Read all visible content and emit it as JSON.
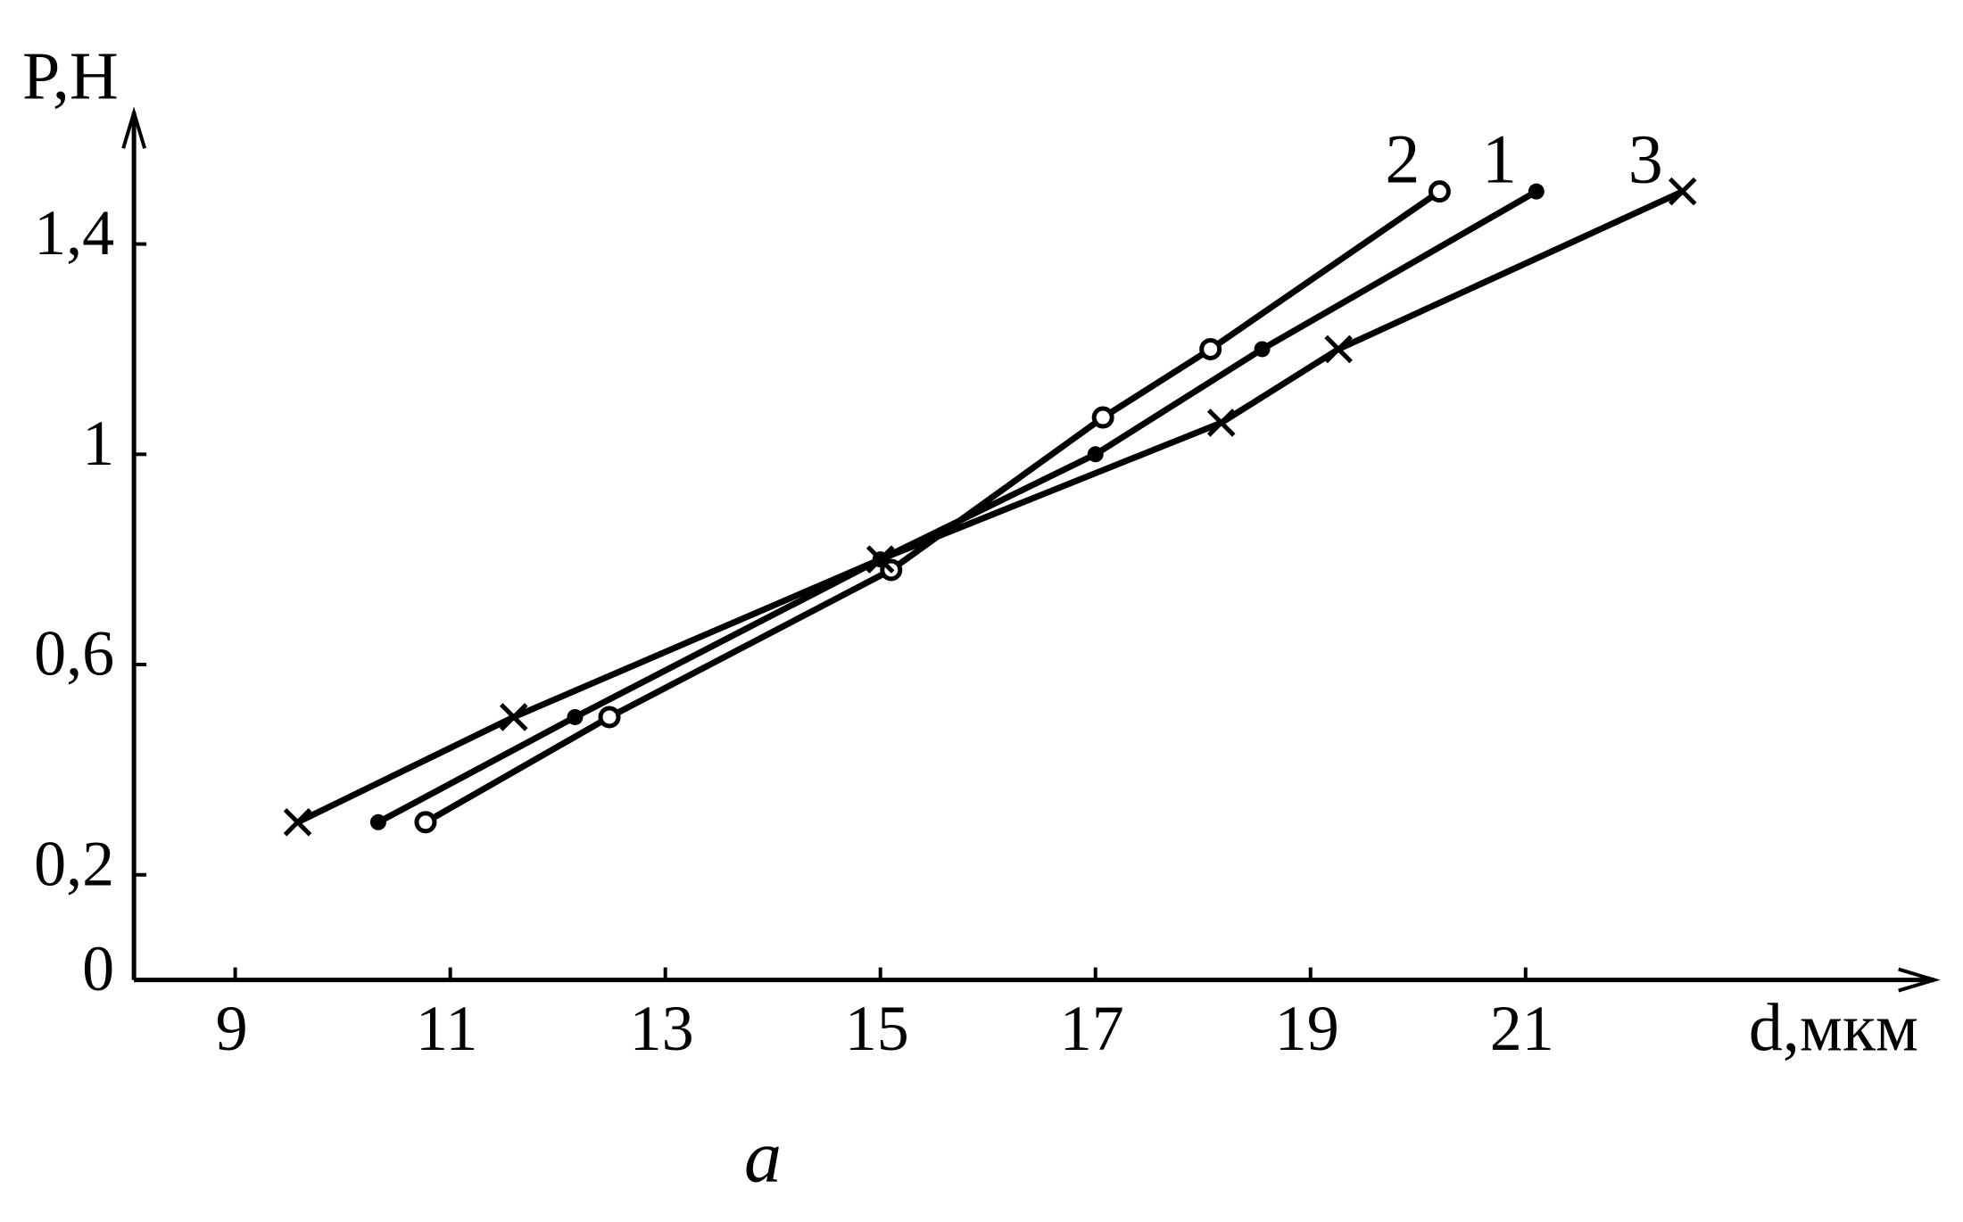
{
  "chart_data": {
    "type": "line",
    "x_label": "d,мкм",
    "y_label": "P,Н",
    "caption": "a",
    "xlim": [
      8,
      24.8
    ],
    "ylim": [
      0,
      1.65
    ],
    "xticks": [
      9,
      11,
      13,
      15,
      17,
      19,
      21
    ],
    "yticks": [
      0,
      {
        "value": 0.2,
        "label": "0,2"
      },
      {
        "value": 0.6,
        "label": "0,6"
      },
      1,
      {
        "value": 1.4,
        "label": "1,4"
      }
    ],
    "series": [
      {
        "name": "1",
        "color": "#000000",
        "marker": "dot",
        "x": [
          10.33,
          12.16,
          15,
          17,
          18.55,
          21.1
        ],
        "values": [
          0.3,
          0.5,
          0.8,
          1.0,
          1.2,
          1.5
        ]
      },
      {
        "name": "2",
        "color": "#000000",
        "marker": "circle",
        "x": [
          10.77,
          12.48,
          15.1,
          17.07,
          18.07,
          20.2
        ],
        "values": [
          0.3,
          0.5,
          0.78,
          1.07,
          1.2,
          1.5
        ]
      },
      {
        "name": "3",
        "color": "#000000",
        "marker": "cross",
        "x": [
          9.58,
          11.59,
          15,
          18.17,
          19.26,
          22.46
        ],
        "values": [
          0.3,
          0.5,
          0.8,
          1.06,
          1.2,
          1.5
        ]
      }
    ]
  }
}
